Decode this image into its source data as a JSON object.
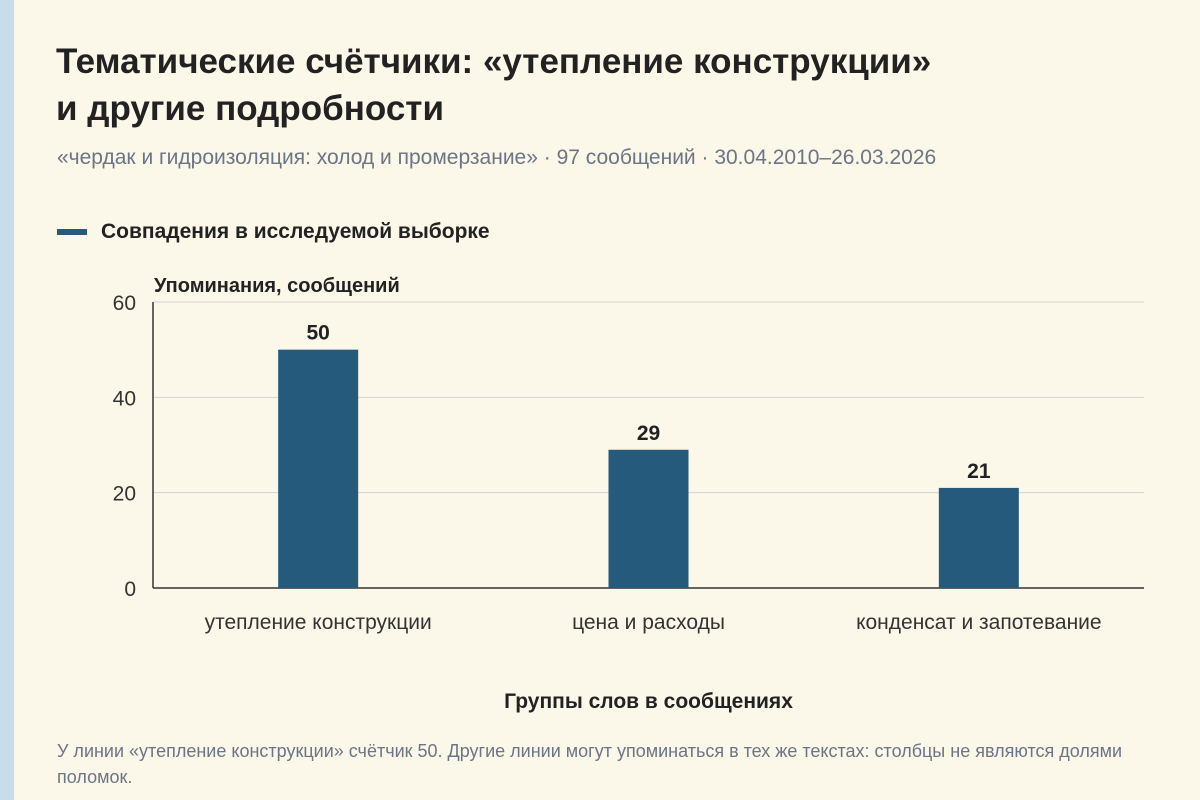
{
  "header": {
    "title_line1": "Тематические счётчики: «утепление конструкции»",
    "title_line2": "и другие подробности",
    "subtitle": "«чердак и гидроизоляция: холод и промерзание» · 97 сообщений · 30.04.2010–26.03.2026"
  },
  "legend": {
    "label": "Совпадения в исследуемой выборке",
    "color": "#255a7c"
  },
  "footer": {
    "note": "У линии «утепление конструкции» счётчик 50. Другие линии могут упоминаться в тех же текстах: столбцы не являются долями поломок."
  },
  "chart_data": {
    "type": "bar",
    "title": "Тематические счётчики: «утепление конструкции» и другие подробности",
    "ylabel": "Упоминания, сообщений",
    "xlabel": "Группы слов в сообщениях",
    "categories": [
      "утепление конструкции",
      "цена и расходы",
      "конденсат и запотевание"
    ],
    "series": [
      {
        "name": "Совпадения в исследуемой выборке",
        "values": [
          50,
          29,
          21
        ],
        "color": "#255a7c"
      }
    ],
    "ylim": [
      0,
      60
    ],
    "yticks": [
      0,
      20,
      40,
      60
    ],
    "grid": true,
    "legend_position": "top-left"
  }
}
